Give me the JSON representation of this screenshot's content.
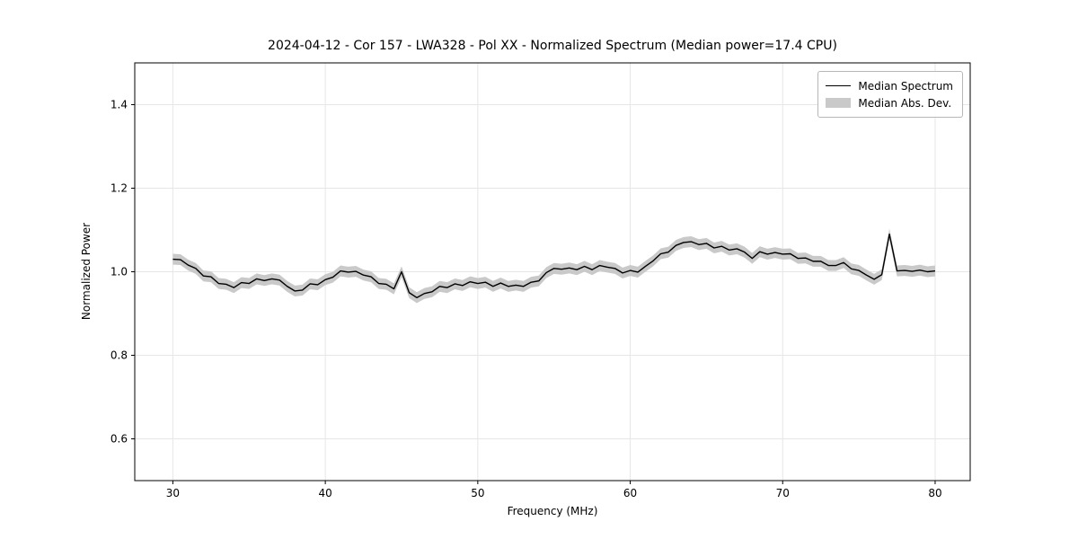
{
  "title": "2024-04-12 - Cor 157 - LWA328 - Pol XX - Normalized Spectrum (Median power=17.4 CPU)",
  "xlabel": "Frequency (MHz)",
  "ylabel": "Normalized Power",
  "legend": {
    "line_label": "Median Spectrum",
    "band_label": "Median Abs. Dev."
  },
  "colors": {
    "line": "#000000",
    "band": "#c9c9c9",
    "grid": "#e6e6e6",
    "spine": "#000000",
    "background": "#ffffff"
  },
  "chart_data": {
    "type": "line",
    "title": "2024-04-12 - Cor 157 - LWA328 - Pol XX - Normalized Spectrum (Median power=17.4 CPU)",
    "xlabel": "Frequency (MHz)",
    "ylabel": "Normalized Power",
    "xlim": [
      27.5,
      82.3
    ],
    "ylim": [
      0.5,
      1.5
    ],
    "xticks": [
      30,
      40,
      50,
      60,
      70,
      80
    ],
    "xtick_labels": [
      "30",
      "40",
      "50",
      "60",
      "70",
      "80"
    ],
    "yticks": [
      0.6,
      0.8,
      1.0,
      1.2,
      1.4
    ],
    "ytick_labels": [
      "0.6",
      "0.8",
      "1.0",
      "1.2",
      "1.4"
    ],
    "grid": true,
    "legend_position": "upper right",
    "x_start": 30,
    "x_step": 0.5,
    "series": [
      {
        "name": "Median Spectrum",
        "values": [
          1.03,
          1.029,
          1.016,
          1.008,
          0.99,
          0.988,
          0.972,
          0.97,
          0.962,
          0.974,
          0.972,
          0.983,
          0.979,
          0.983,
          0.98,
          0.965,
          0.954,
          0.956,
          0.971,
          0.969,
          0.981,
          0.987,
          1.002,
          0.999,
          1.001,
          0.992,
          0.988,
          0.972,
          0.97,
          0.959,
          1.0,
          0.95,
          0.938,
          0.948,
          0.952,
          0.965,
          0.962,
          0.971,
          0.967,
          0.976,
          0.972,
          0.975,
          0.965,
          0.973,
          0.965,
          0.968,
          0.965,
          0.975,
          0.978,
          0.998,
          1.008,
          1.006,
          1.009,
          1.005,
          1.013,
          1.005,
          1.015,
          1.011,
          1.008,
          0.997,
          1.003,
          0.999,
          1.013,
          1.026,
          1.043,
          1.047,
          1.063,
          1.07,
          1.072,
          1.065,
          1.068,
          1.057,
          1.061,
          1.052,
          1.055,
          1.047,
          1.032,
          1.048,
          1.042,
          1.046,
          1.042,
          1.043,
          1.032,
          1.033,
          1.025,
          1.025,
          1.015,
          1.015,
          1.022,
          1.007,
          1.003,
          0.992,
          0.982,
          0.993,
          1.09,
          1.002,
          1.003,
          1.001,
          1.004,
          1.0,
          1.002
        ]
      },
      {
        "name": "Median Abs. Dev.",
        "band_halfwidth": 0.013
      }
    ]
  }
}
